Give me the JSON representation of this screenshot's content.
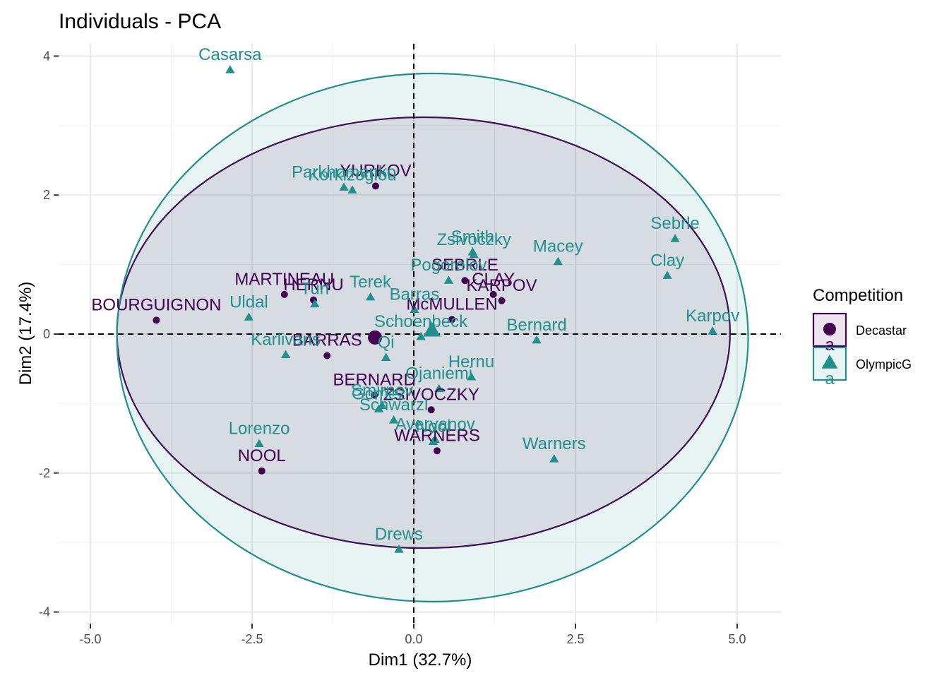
{
  "chart_data": {
    "type": "scatter",
    "title": "Individuals - PCA",
    "xlabel": "Dim1 (32.7%)",
    "ylabel": "Dim2 (17.4%)",
    "xlim": [
      -5.0,
      5.0
    ],
    "ylim": [
      -4,
      4
    ],
    "x_ticks": [
      -5.0,
      -2.5,
      0.0,
      2.5,
      5.0
    ],
    "x_tick_labels": [
      "-5.0",
      "-2.5",
      "0.0",
      "2.5",
      "5.0"
    ],
    "y_ticks": [
      -4,
      -2,
      0,
      2,
      4
    ],
    "y_tick_labels": [
      "-4",
      "-2",
      "0",
      "2",
      "4"
    ],
    "grid": true,
    "legend": {
      "title": "Competition",
      "position": "right",
      "key_text": "a",
      "entries": [
        "Decastar",
        "OlympicG"
      ]
    },
    "colors": {
      "Decastar": "#440154",
      "OlympicG": "#21908c"
    },
    "series": [
      {
        "name": "Decastar",
        "marker": "circle",
        "points": [
          {
            "label": "SEBRLE",
            "x": 0.79,
            "y": 0.77
          },
          {
            "label": "CLAY",
            "x": 1.23,
            "y": 0.57
          },
          {
            "label": "KARPOV",
            "x": 1.36,
            "y": 0.48
          },
          {
            "label": "BERNARD",
            "x": -0.61,
            "y": -0.88
          },
          {
            "label": "YURKOV",
            "x": -0.59,
            "y": 2.13
          },
          {
            "label": "WARNERS",
            "x": 0.36,
            "y": -1.68
          },
          {
            "label": "ZSIVOCZKY",
            "x": 0.27,
            "y": -1.09
          },
          {
            "label": "McMULLEN",
            "x": 0.59,
            "y": 0.21
          },
          {
            "label": "MARTINEAU",
            "x": -2.0,
            "y": 0.57
          },
          {
            "label": "HERNU",
            "x": -1.55,
            "y": 0.49
          },
          {
            "label": "BARRAS",
            "x": -1.34,
            "y": -0.31
          },
          {
            "label": "NOOL",
            "x": -2.35,
            "y": -1.97
          },
          {
            "label": "BOURGUIGNON",
            "x": -3.98,
            "y": 0.2
          }
        ],
        "center": {
          "x": -0.6,
          "y": -0.05
        },
        "ellipse": {
          "cx": 0.15,
          "cy": 0.02,
          "rx": 4.74,
          "ry": 3.1
        }
      },
      {
        "name": "OlympicG",
        "marker": "triangle",
        "points": [
          {
            "label": "Sebrle",
            "x": 4.04,
            "y": 1.37
          },
          {
            "label": "Clay",
            "x": 3.92,
            "y": 0.84
          },
          {
            "label": "Karpov",
            "x": 4.62,
            "y": 0.04
          },
          {
            "label": "Macey",
            "x": 2.23,
            "y": 1.04
          },
          {
            "label": "Warners",
            "x": 2.17,
            "y": -1.8
          },
          {
            "label": "Zsivoczky",
            "x": 0.93,
            "y": 1.14
          },
          {
            "label": "Hernu",
            "x": 0.89,
            "y": -0.62
          },
          {
            "label": "Nool",
            "x": 0.3,
            "y": -1.55
          },
          {
            "label": "Bernard",
            "x": 1.9,
            "y": -0.09
          },
          {
            "label": "Schwarzl",
            "x": -0.31,
            "y": -1.24
          },
          {
            "label": "Pogorelov",
            "x": 0.54,
            "y": 0.77
          },
          {
            "label": "Schoenbeck",
            "x": 0.11,
            "y": -0.04
          },
          {
            "label": "Barras",
            "x": 0.01,
            "y": 0.35
          },
          {
            "label": "Smith",
            "x": 0.91,
            "y": 1.18
          },
          {
            "label": "Averyanov",
            "x": 0.33,
            "y": -1.52
          },
          {
            "label": "Ojaniemi",
            "x": 0.39,
            "y": -0.79
          },
          {
            "label": "Smirnov",
            "x": -0.49,
            "y": -1.03
          },
          {
            "label": "Qi",
            "x": -0.43,
            "y": -0.34
          },
          {
            "label": "Drews",
            "x": -0.23,
            "y": -3.1
          },
          {
            "label": "Parkhomenko",
            "x": -1.08,
            "y": 2.11
          },
          {
            "label": "Terek",
            "x": -0.67,
            "y": 0.53
          },
          {
            "label": "Gomez",
            "x": -0.54,
            "y": -1.08
          },
          {
            "label": "Turi",
            "x": -1.53,
            "y": 0.43
          },
          {
            "label": "Lorenzo",
            "x": -2.39,
            "y": -1.58
          },
          {
            "label": "Karlivans",
            "x": -1.98,
            "y": -0.3
          },
          {
            "label": "Korkizoglou",
            "x": -0.95,
            "y": 2.07
          },
          {
            "label": "Uldal",
            "x": -2.55,
            "y": 0.24
          },
          {
            "label": "Casarsa",
            "x": -2.84,
            "y": 3.8
          }
        ],
        "center": {
          "x": 0.28,
          "y": 0.05
        },
        "ellipse": {
          "cx": 0.29,
          "cy": -0.05,
          "rx": 4.88,
          "ry": 3.8
        }
      }
    ]
  }
}
